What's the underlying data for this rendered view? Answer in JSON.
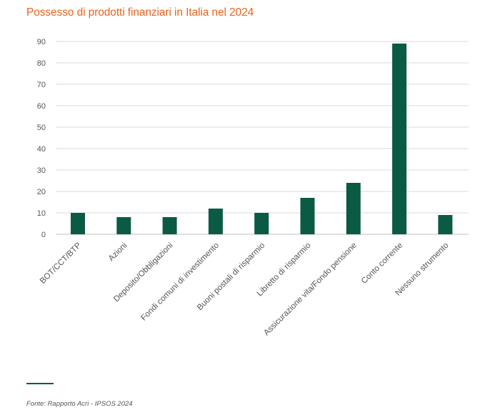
{
  "header": {
    "title": "Possesso di prodotti finanziari in Italia nel 2024"
  },
  "footer": {
    "source": "Fonte: Rapporto Acri - IPSOS 2024"
  },
  "colors": {
    "title": "#e8641e",
    "bar": "#0a5a44",
    "grid": "#d9d9d9",
    "text": "#555555"
  },
  "chart_data": {
    "type": "bar",
    "title": "Possesso di prodotti finanziari in Italia nel 2024",
    "xlabel": "",
    "ylabel": "",
    "ylim": [
      0,
      90
    ],
    "yticks": [
      0,
      10,
      20,
      30,
      40,
      50,
      60,
      70,
      80,
      90
    ],
    "grid": true,
    "legend": "none",
    "categories": [
      "BOT/CCT/BTP",
      "Azioni",
      "Deposito/Obbligazioni",
      "Fondi comuni di investimento",
      "Buoni postali di risparmio",
      "Libretto di risparmio",
      "Assicurazione vita/Fondo pensione",
      "Conto corrente",
      "Nessuno strumento"
    ],
    "values": [
      10,
      8,
      8,
      12,
      10,
      17,
      24,
      89,
      9
    ]
  }
}
